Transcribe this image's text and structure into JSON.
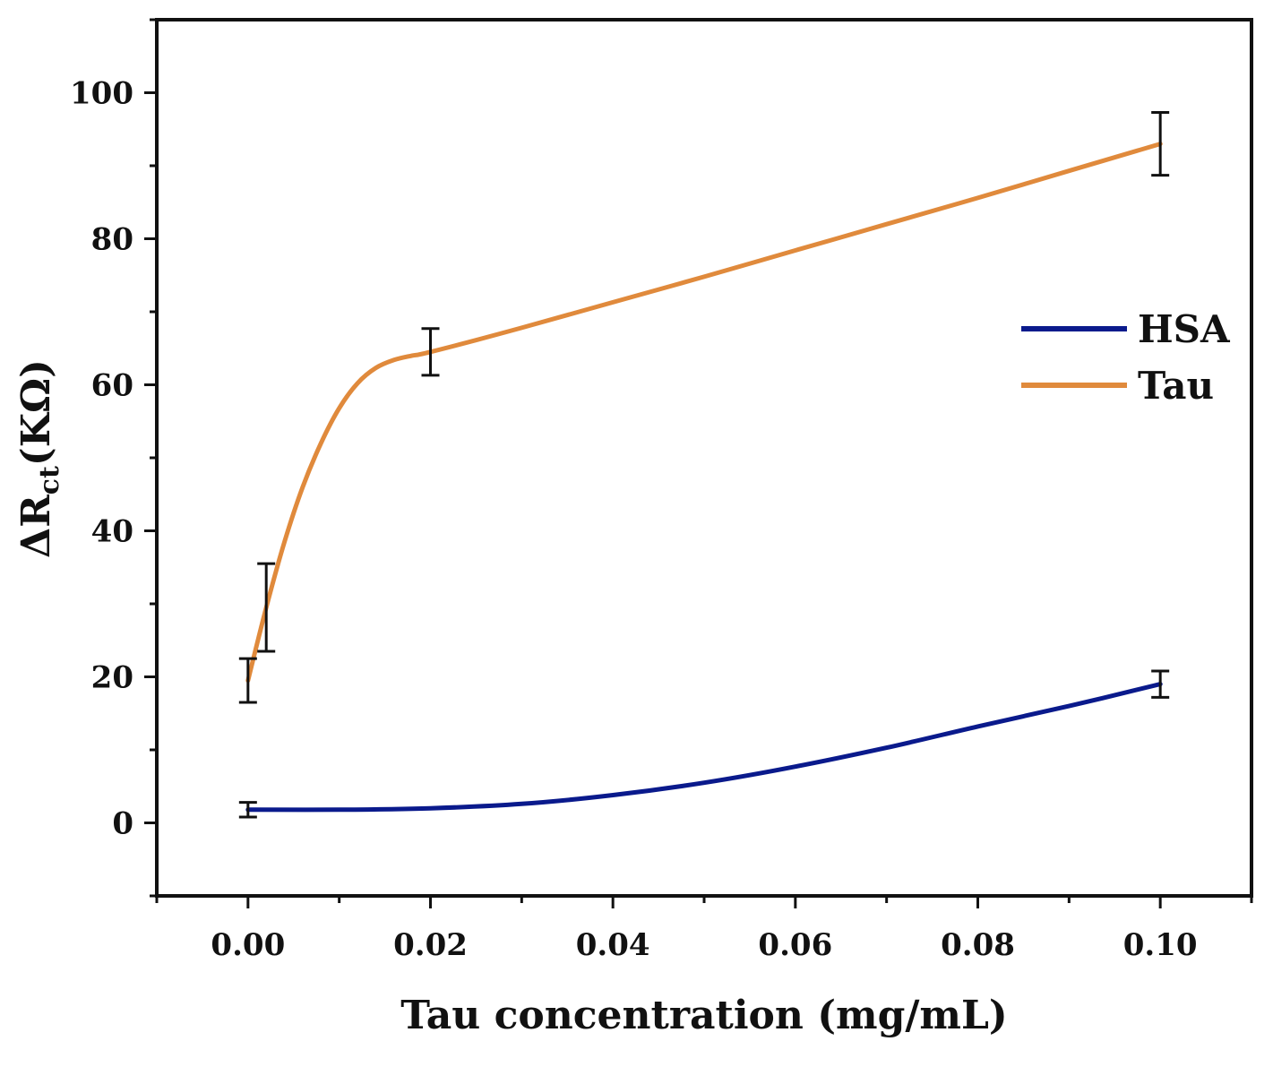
{
  "chart_data": {
    "type": "line",
    "title": "",
    "xlabel": "Tau concentration (mg/mL)",
    "ylabel": {
      "main": "ΔR",
      "sub": "ct",
      "unit": "(KΩ)"
    },
    "xlim": [
      -0.01,
      0.11
    ],
    "ylim": [
      -10,
      110
    ],
    "x_ticks": [
      0.0,
      0.02,
      0.04,
      0.06,
      0.08,
      0.1
    ],
    "x_tick_labels": [
      "0.00",
      "0.02",
      "0.04",
      "0.06",
      "0.08",
      "0.10"
    ],
    "y_ticks": [
      0,
      20,
      40,
      60,
      80,
      100
    ],
    "y_tick_labels": [
      "0",
      "20",
      "40",
      "60",
      "80",
      "100"
    ],
    "grid": false,
    "legend_position": "right",
    "series": [
      {
        "name": "HSA",
        "color": "#0a1a8c",
        "points": [
          {
            "x": 0.0,
            "y": 1.8,
            "err": 1.0
          },
          {
            "x": 0.02,
            "y": 2.0,
            "err": 0
          },
          {
            "x": 0.1,
            "y": 19.0,
            "err": 1.8
          }
        ],
        "curve": [
          [
            0.0,
            1.8
          ],
          [
            0.01,
            1.8
          ],
          [
            0.02,
            2.0
          ],
          [
            0.03,
            2.6
          ],
          [
            0.04,
            3.8
          ],
          [
            0.05,
            5.5
          ],
          [
            0.06,
            7.7
          ],
          [
            0.07,
            10.3
          ],
          [
            0.08,
            13.2
          ],
          [
            0.09,
            16.0
          ],
          [
            0.1,
            19.0
          ]
        ]
      },
      {
        "name": "Tau",
        "color": "#e08a3c",
        "points": [
          {
            "x": 0.0,
            "y": 19.5,
            "err": 3.0
          },
          {
            "x": 0.002,
            "y": 29.5,
            "err": 6.0
          },
          {
            "x": 0.02,
            "y": 64.5,
            "err": 3.2
          },
          {
            "x": 0.1,
            "y": 93.0,
            "err": 4.3
          }
        ],
        "curve": [
          [
            0.0,
            19.5
          ],
          [
            0.002,
            29.5
          ],
          [
            0.004,
            38.5
          ],
          [
            0.006,
            46.0
          ],
          [
            0.008,
            52.0
          ],
          [
            0.01,
            56.8
          ],
          [
            0.012,
            60.2
          ],
          [
            0.014,
            62.3
          ],
          [
            0.016,
            63.4
          ],
          [
            0.018,
            64.0
          ],
          [
            0.02,
            64.5
          ],
          [
            0.03,
            67.8
          ],
          [
            0.04,
            71.3
          ],
          [
            0.05,
            74.8
          ],
          [
            0.06,
            78.4
          ],
          [
            0.07,
            82.0
          ],
          [
            0.08,
            85.6
          ],
          [
            0.09,
            89.3
          ],
          [
            0.1,
            93.0
          ]
        ]
      }
    ]
  }
}
